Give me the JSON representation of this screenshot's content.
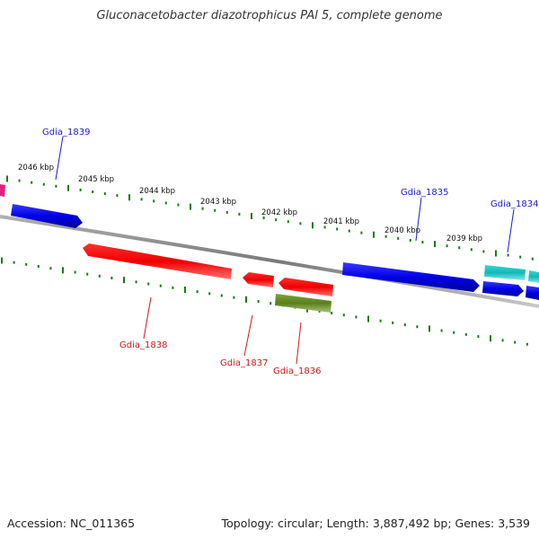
{
  "title": "Gluconacetobacter diazotrophicus PAl 5, complete genome",
  "footer": {
    "accession": "Accession: NC_011365",
    "summary": "Topology: circular; Length: 3,887,492 bp; Genes: 3,539"
  },
  "scale_labels": [
    "2046 kbp",
    "2045 kbp",
    "2044 kbp",
    "2043 kbp",
    "2042 kbp",
    "2041 kbp",
    "2040 kbp",
    "2039 kbp"
  ],
  "gene_labels": {
    "forward": [
      "Gdia_1839",
      "Gdia_1835",
      "Gdia_1834"
    ],
    "reverse": [
      "Gdia_1838",
      "Gdia_1837",
      "Gdia_1836"
    ]
  },
  "colors": {
    "forward_gene": "#0000e6",
    "reverse_gene": "#ee0000",
    "rna_gene": "#6b8e23",
    "other_gene": "#1fc8c8",
    "ticks": "#1a7a1a",
    "backbone": "#808080",
    "forward_label": "#1a1acc",
    "reverse_label": "#cc1a1a"
  }
}
